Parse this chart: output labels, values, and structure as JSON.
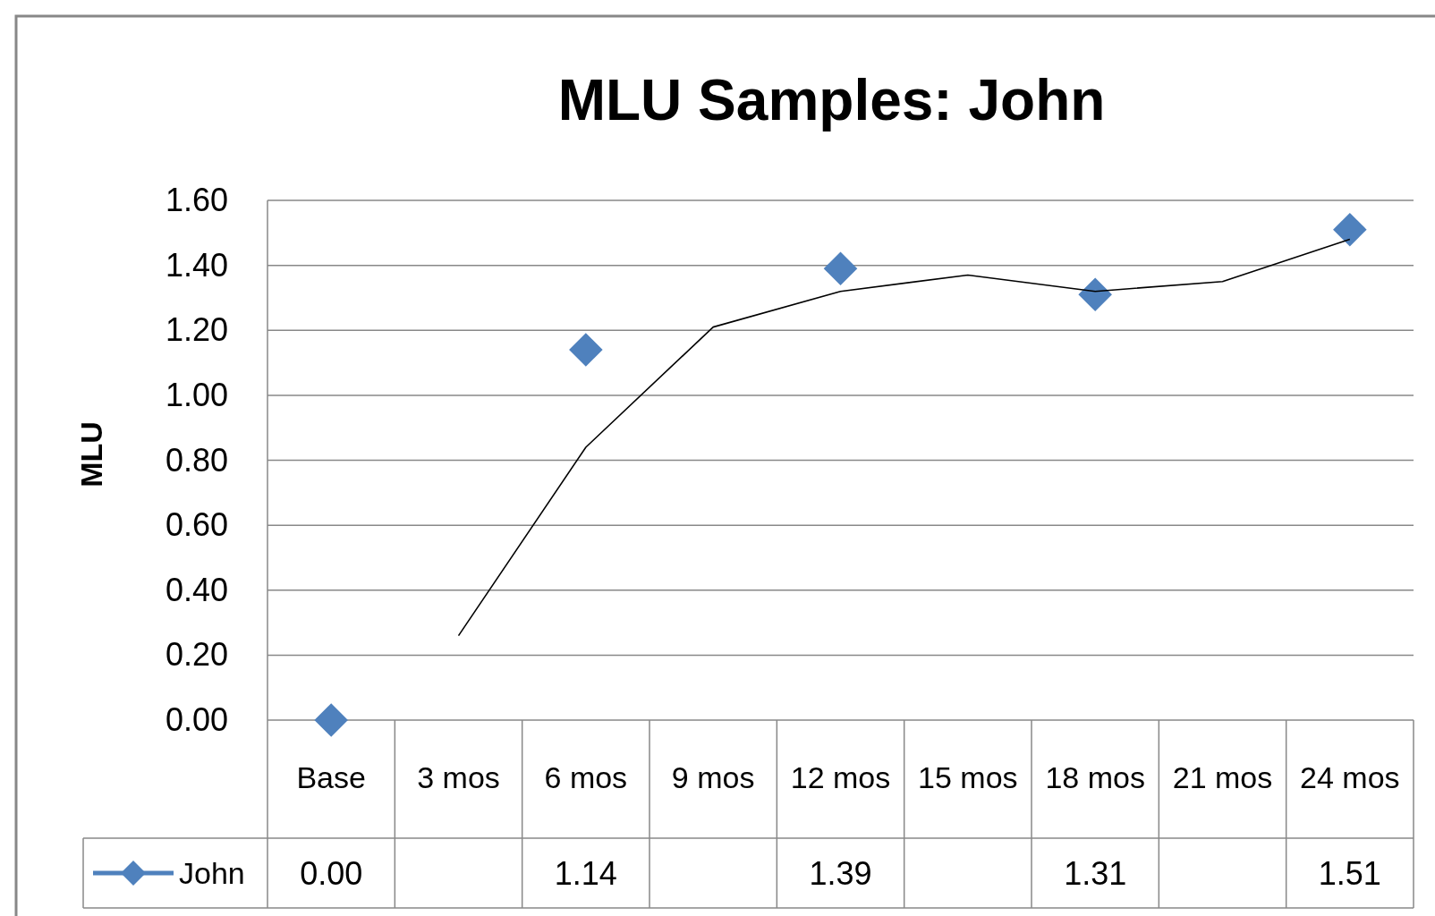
{
  "chart_data": {
    "type": "scatter",
    "title": "MLU Samples: John",
    "ylabel": "MLU",
    "categories": [
      "Base",
      "3 mos",
      "6 mos",
      "9 mos",
      "12 mos",
      "15 mos",
      "18 mos",
      "21 mos",
      "24 mos"
    ],
    "ylim": [
      0,
      1.6
    ],
    "yticks": [
      {
        "value": 0,
        "label": "0.00"
      },
      {
        "value": 0.2,
        "label": "0.20"
      },
      {
        "value": 0.4,
        "label": "0.40"
      },
      {
        "value": 0.6,
        "label": "0.60"
      },
      {
        "value": 0.8,
        "label": "0.80"
      },
      {
        "value": 1,
        "label": "1.00"
      },
      {
        "value": 1.2,
        "label": "1.20"
      },
      {
        "value": 1.4,
        "label": "1.40"
      },
      {
        "value": 1.6,
        "label": "1.60"
      }
    ],
    "grid": "y",
    "legend": "bottom",
    "series": [
      {
        "name": "John",
        "marker": "diamond",
        "color": "#4f81bd",
        "values": [
          0,
          null,
          1.14,
          null,
          1.39,
          null,
          1.31,
          null,
          1.51
        ],
        "value_labels": [
          "0.00",
          null,
          "1.14",
          null,
          "1.39",
          null,
          "1.31",
          null,
          "1.51"
        ]
      },
      {
        "type": "line",
        "color": "#000000",
        "values": [
          null,
          0.26,
          0.84,
          1.21,
          1.32,
          1.37,
          1.32,
          1.35,
          1.48
        ],
        "line_style": "solid"
      }
    ]
  }
}
